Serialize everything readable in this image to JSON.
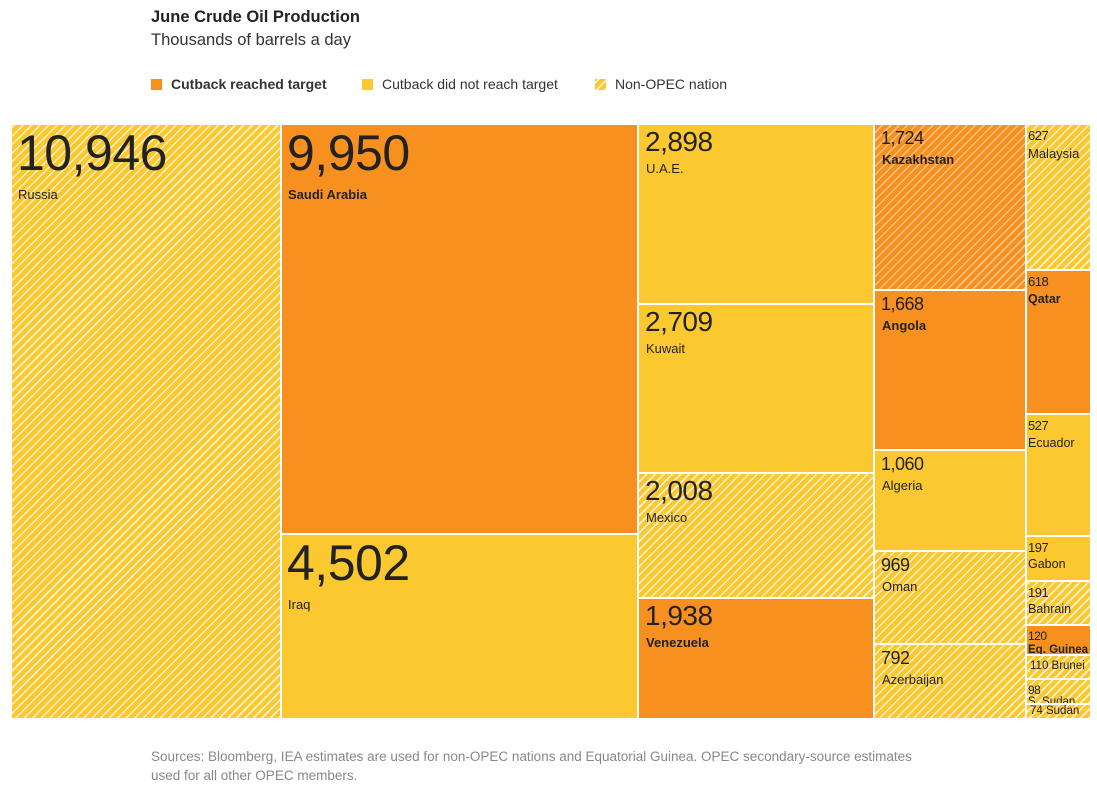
{
  "title": "June Crude Oil Production",
  "subtitle": "Thousands of barrels a day",
  "legend": [
    {
      "label": "Cutback reached target",
      "category": "reached"
    },
    {
      "label": "Cutback did not reach target",
      "category": "not_reached"
    },
    {
      "label": "Non-OPEC nation",
      "category": "non_opec"
    }
  ],
  "colors": {
    "reached": "#f7901e",
    "not_reached": "#fcc830",
    "non_opec_base": "#fcc830",
    "hatch": "#ffffff",
    "text": "#222222",
    "source": "#888888"
  },
  "source": "Sources: Bloomberg, IEA estimates are used for non-OPEC nations and Equatorial Guinea. OPEC secondary-source estimates used for all other OPEC members.",
  "chart_data": {
    "type": "treemap",
    "unit": "Thousands of barrels a day",
    "items": [
      {
        "name": "Russia",
        "value": 10946,
        "value_label": "10,946",
        "category": "non_opec"
      },
      {
        "name": "Saudi Arabia",
        "value": 9950,
        "value_label": "9,950",
        "category": "reached"
      },
      {
        "name": "Iraq",
        "value": 4502,
        "value_label": "4,502",
        "category": "not_reached"
      },
      {
        "name": "U.A.E.",
        "value": 2898,
        "value_label": "2,898",
        "category": "not_reached"
      },
      {
        "name": "Kuwait",
        "value": 2709,
        "value_label": "2,709",
        "category": "not_reached"
      },
      {
        "name": "Mexico",
        "value": 2008,
        "value_label": "2,008",
        "category": "non_opec"
      },
      {
        "name": "Venezuela",
        "value": 1938,
        "value_label": "1,938",
        "category": "reached"
      },
      {
        "name": "Kazakhstan",
        "value": 1724,
        "value_label": "1,724",
        "category": "non_opec_reached"
      },
      {
        "name": "Angola",
        "value": 1668,
        "value_label": "1,668",
        "category": "reached"
      },
      {
        "name": "Algeria",
        "value": 1060,
        "value_label": "1,060",
        "category": "not_reached"
      },
      {
        "name": "Oman",
        "value": 969,
        "value_label": "969",
        "category": "non_opec"
      },
      {
        "name": "Azerbaijan",
        "value": 792,
        "value_label": "792",
        "category": "non_opec"
      },
      {
        "name": "Malaysia",
        "value": 627,
        "value_label": "627",
        "category": "non_opec"
      },
      {
        "name": "Qatar",
        "value": 618,
        "value_label": "618",
        "category": "reached"
      },
      {
        "name": "Ecuador",
        "value": 527,
        "value_label": "527",
        "category": "not_reached"
      },
      {
        "name": "Gabon",
        "value": 197,
        "value_label": "197",
        "category": "not_reached"
      },
      {
        "name": "Bahrain",
        "value": 191,
        "value_label": "191",
        "category": "non_opec"
      },
      {
        "name": "Eq. Guinea",
        "value": 120,
        "value_label": "120",
        "category": "reached"
      },
      {
        "name": "Brunei",
        "value": 110,
        "value_label": "110",
        "category": "non_opec"
      },
      {
        "name": "S. Sudan",
        "value": 98,
        "value_label": "98",
        "category": "non_opec"
      },
      {
        "name": "Sudan",
        "value": 74,
        "value_label": "74",
        "category": "non_opec"
      }
    ]
  }
}
